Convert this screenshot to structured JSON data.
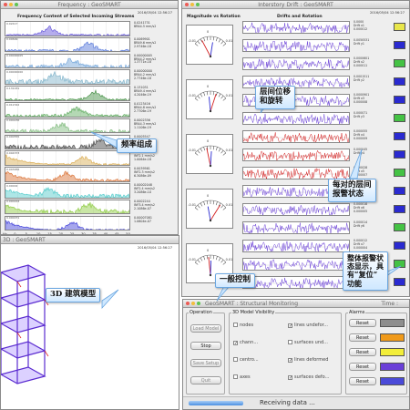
{
  "freq_window": {
    "title": "Frequency : GeoSMART",
    "timestamp": "2016/05/04 12:56:27",
    "header": "Frequency Content of Selected Incoming Streams",
    "channels": [
      {
        "label": "0.0241731\nBRA4.5 mm/s2",
        "peak": "0.02417"
      },
      {
        "label": "0.0069901\nBRA9.6 mm/s2\n2.9746e-18",
        "peak": "0.00699"
      },
      {
        "label": "0.00000005\nBRA4.2 mm/s2\n1.3771e-18",
        "peak": "0.00000005"
      },
      {
        "label": "0.00000000\nBRA4.2 mm/s2\n2.7746e-18",
        "peak": "0.00000000"
      },
      {
        "label": "0.131031\nBRA9.4 mm/s2\n4.2046e-19",
        "peak": "0.131031"
      },
      {
        "label": "0.0123416\nBRA4.8 mm/s2\n2.7706e-19",
        "peak": "0.012342"
      },
      {
        "label": "0.0002356\nBRA4.3 mm/s2\n1.1106e-19",
        "peak": "0.000236"
      },
      {
        "label": "0.0005547\nBRA5.4 mm/s2\n3.0446e-18",
        "peak": "0.000555"
      },
      {
        "label": "0.0043731\nINF2.1 mm/s2\n1.0064e-18",
        "peak": "0.004373"
      },
      {
        "label": "0.0039561\nINF2.3 mm/s2\n6.3086e-09",
        "peak": "0.003956"
      },
      {
        "label": "0.00002048\nINF2.4 mm/s2\n3.2086e-10",
        "peak": "0.00002"
      },
      {
        "label": "0.0002244\nINF3.4 mm/s2\n2.1086e-07",
        "peak": "0.000224"
      },
      {
        "label": "0.00007081\n1.0604e-07",
        "peak": "0.000071"
      }
    ],
    "x_ticks": [
      "Hz",
      "0",
      "5",
      "10",
      "15",
      "20",
      "25",
      "30",
      "35",
      "40",
      "45",
      "50"
    ]
  },
  "drift_window": {
    "title": "Interstory Drift : GeoSMART",
    "timestamp": "2016/05/04 12:56:27",
    "header_rotation": "Magnitude vs Rotation",
    "header_drift": "Drifts and Rotation",
    "gauge_ticks": [
      "-0.01",
      "0",
      "0.01"
    ],
    "gauge_tick_values": [
      -0.01,
      0,
      0.01
    ],
    "rows": [
      {
        "label": "0.0000\nDrift x1\n0.000012",
        "color": "#6a3fd8",
        "alarm": "#e8e64a"
      },
      {
        "label": "0.0050531\nDrift y1",
        "color": "#6a3fd8",
        "alarm": "#2a2ad0"
      },
      {
        "label": "0.0000601\nDrift x2\n0.000011",
        "color": "#6a3fd8",
        "alarm": "#44c244"
      },
      {
        "label": "0.0001511\nDrift y2",
        "color": "#6a3fd8",
        "alarm": "#2a2ad0"
      },
      {
        "label": "0.0000901\nDrift x3\n0.000008",
        "color": "#6a3fd8",
        "alarm": "#2a2ad0"
      },
      {
        "label": "0.000071\nDrift y3",
        "color": "#6a3fd8",
        "alarm": "#44c244"
      },
      {
        "label": "0.000055\nDrift x4\n0.000009",
        "color": "#d42020",
        "alarm": "#2a2ad0"
      },
      {
        "label": "0.000045\nDrift y4",
        "color": "#d42020",
        "alarm": "#2a2ad0"
      },
      {
        "label": "0.000028\nDrift x5\n0.000007",
        "color": "#d42020",
        "alarm": "#44c244"
      },
      {
        "label": "0.000021\nDrift y5",
        "color": "#6a3fd8",
        "alarm": "#2a2ad0"
      },
      {
        "label": "0.000018\nDrift x6\n0.000005",
        "color": "#6a3fd8",
        "alarm": "#2a2ad0"
      },
      {
        "label": "0.000014\nDrift y6",
        "color": "#6a3fd8",
        "alarm": "#44c244"
      },
      {
        "label": "0.000012\nDrift x7\n0.000004",
        "color": "#6a3fd8",
        "alarm": "#2a2ad0"
      },
      {
        "label": "0.000010\nDrift y7",
        "color": "#6a3fd8",
        "alarm": "#44c244"
      },
      {
        "label": "0.000008\nDrift x8",
        "color": "#6a3fd8",
        "alarm": "#2a2ad0"
      }
    ]
  },
  "model_window": {
    "title": "3D : GeoSMART",
    "timestamp": "2016/05/04 12:56:27"
  },
  "control_window": {
    "title": "GeoSMART : Structural Monitoring",
    "time_label": "Time :",
    "operation": {
      "title": "Operation",
      "load_model": "Load Model",
      "stop": "Stop",
      "save_setup": "Save Setup",
      "quit": "Quit"
    },
    "visibility": {
      "title": "3D Model Visibility",
      "items": [
        {
          "label": "nodes",
          "checked": false
        },
        {
          "label": "lines undefor...",
          "checked": true
        },
        {
          "label": "chann...",
          "checked": true
        },
        {
          "label": "surfaces und...",
          "checked": false
        },
        {
          "label": "centro...",
          "checked": false
        },
        {
          "label": "lines deformed",
          "checked": true
        },
        {
          "label": "axes",
          "checked": false
        },
        {
          "label": "surfaces defo...",
          "checked": true
        }
      ]
    },
    "alarms": {
      "title": "Alarms",
      "reset": "Reset",
      "levels": [
        "#8e8e8e",
        "#f09a1a",
        "#f2ee3a",
        "#6a3fd8",
        "#4a4ad8"
      ]
    },
    "status": "Receiving data ...",
    "check_mark": "✓"
  },
  "callouts": {
    "frequency": "频率组成",
    "drift": "层间位移\n和旋转",
    "alarm_each": "每对的层间\n报警状态",
    "model": "3D 建筑模型",
    "control": "一般控制",
    "alarm_all": "整体报警状\n态显示，具\n有“复位”\n功能"
  }
}
